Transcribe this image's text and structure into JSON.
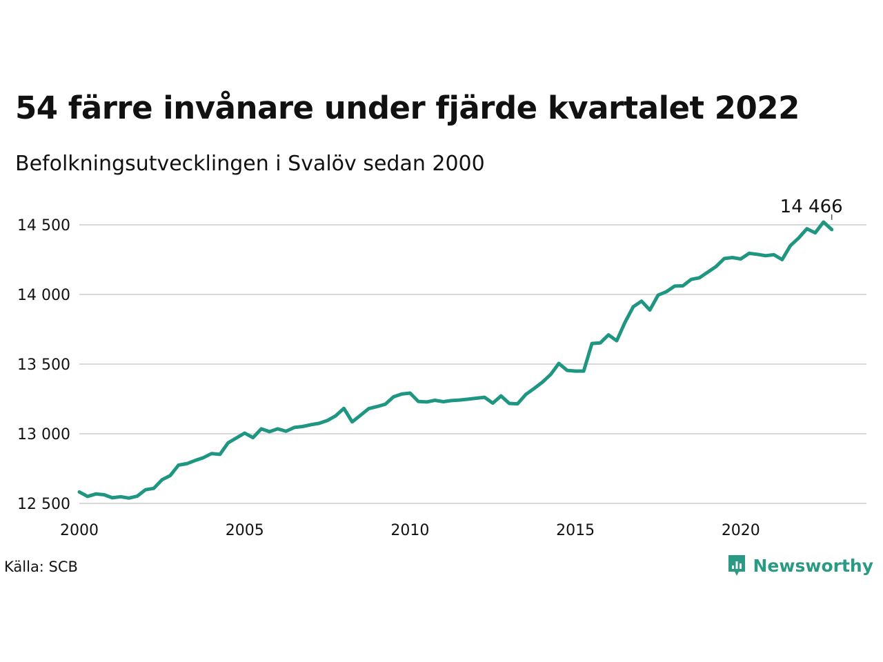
{
  "title": "54 färre invånare under fjärde kvartalet 2022",
  "subtitle": "Befolkningsutvecklingen i Svalöv sedan 2000",
  "source": "Källa: SCB",
  "brand": "Newsworthy",
  "colors": {
    "line": "#1e9682",
    "grid": "#d9d9d9",
    "brand": "#2a9a85"
  },
  "icons": {
    "brand_logo": "newsworthy-logo-icon"
  },
  "chart_data": {
    "type": "line",
    "xlim": [
      2000,
      2023.8
    ],
    "ylim": [
      12500,
      14500
    ],
    "x_ticks": [
      2000,
      2005,
      2010,
      2015,
      2020
    ],
    "x_tick_labels": [
      "2000",
      "2005",
      "2010",
      "2015",
      "2020"
    ],
    "y_ticks": [
      12500,
      13000,
      13500,
      14000,
      14500
    ],
    "y_tick_labels": [
      "12 500",
      "13 000",
      "13 500",
      "14 000",
      "14 500"
    ],
    "grid": true,
    "end_label": "14 466",
    "values": [
      12582,
      12550,
      12568,
      12562,
      12540,
      12548,
      12538,
      12552,
      12598,
      12608,
      12670,
      12700,
      12775,
      12785,
      12808,
      12828,
      12858,
      12852,
      12935,
      12970,
      13005,
      12972,
      13035,
      13015,
      13035,
      13018,
      13045,
      13052,
      13065,
      13075,
      13095,
      13128,
      13182,
      13085,
      13132,
      13180,
      13195,
      13212,
      13265,
      13285,
      13292,
      13232,
      13228,
      13240,
      13230,
      13238,
      13242,
      13248,
      13255,
      13262,
      13220,
      13272,
      13218,
      13215,
      13282,
      13325,
      13370,
      13425,
      13505,
      13455,
      13450,
      13450,
      13648,
      13652,
      13710,
      13668,
      13800,
      13912,
      13952,
      13888,
      13995,
      14020,
      14060,
      14062,
      14108,
      14120,
      14160,
      14200,
      14258,
      14265,
      14255,
      14295,
      14288,
      14278,
      14285,
      14250,
      14350,
      14405,
      14472,
      14442,
      14520,
      14466
    ]
  }
}
